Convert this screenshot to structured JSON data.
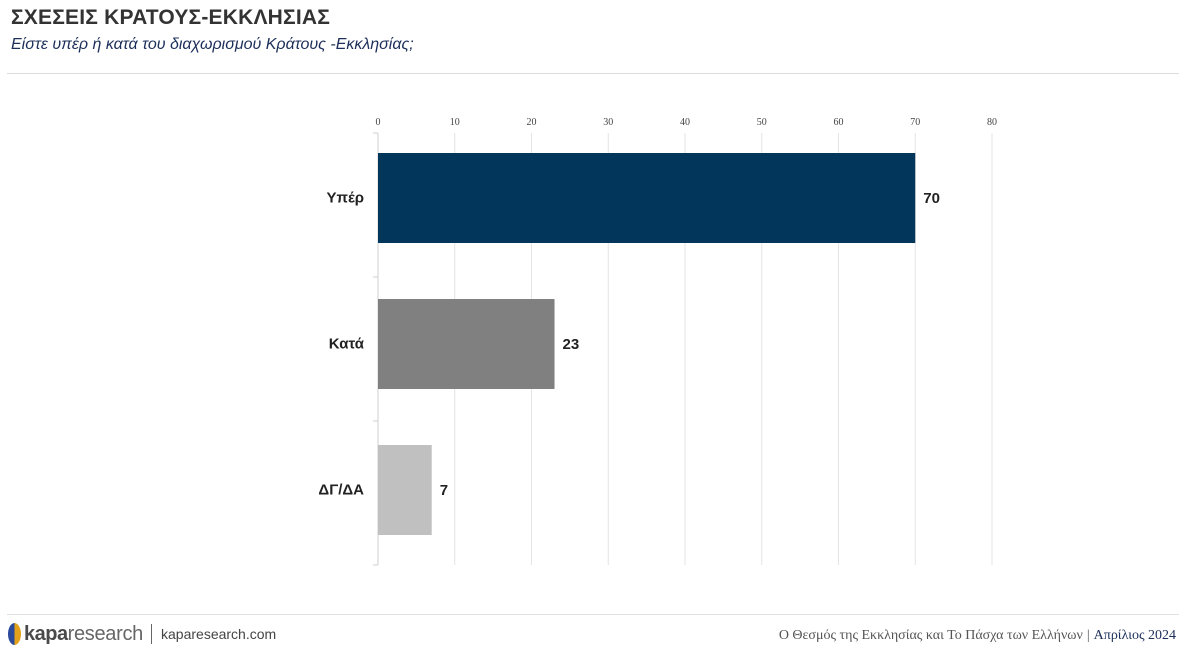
{
  "header": {
    "title": "ΣΧΕΣΕΙΣ ΚΡΑΤΟΥΣ-ΕΚΚΛΗΣΙΑΣ",
    "subtitle": "Είστε υπέρ ή κατά του διαχωρισμού Κράτους -Εκκλησίας;"
  },
  "chart_data": {
    "type": "bar",
    "orientation": "horizontal",
    "categories": [
      "Υπέρ",
      "Κατά",
      "ΔΓ/ΔΑ"
    ],
    "values": [
      70,
      23,
      7
    ],
    "colors": [
      "#02365a",
      "#808080",
      "#c0c0c0"
    ],
    "xlim": [
      0,
      80
    ],
    "xticks": [
      0,
      10,
      20,
      30,
      40,
      50,
      60,
      70,
      80
    ],
    "axis_position": "top",
    "grid": true,
    "legend": "none"
  },
  "footer": {
    "brand_bold": "kapa",
    "brand_light": "research",
    "url": "kaparesearch.com",
    "report_title": "Ο Θεσμός της Εκκλησίας και Το Πάσχα των Ελλήνων",
    "separator": "|",
    "date": "Απρίλιος 2024"
  },
  "colors": {
    "title": "#333333",
    "subtitle": "#1c2f5a",
    "logo_blue": "#2b4a9a",
    "logo_gold": "#e3a21a"
  }
}
